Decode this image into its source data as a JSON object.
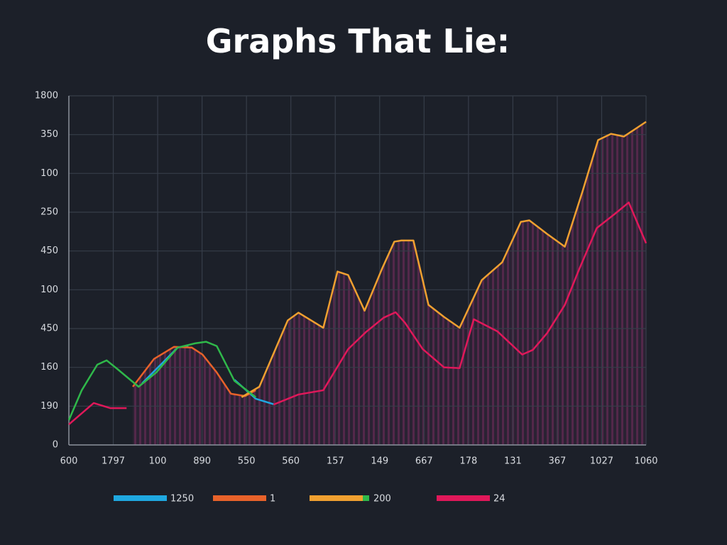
{
  "chart_data": {
    "type": "line",
    "title": "Graphs That Lie:",
    "xlim": [
      0,
      13
    ],
    "xticks": [
      {
        "value": 0,
        "label": "600"
      },
      {
        "value": 1,
        "label": "1797"
      },
      {
        "value": 2,
        "label": "100"
      },
      {
        "value": 3,
        "label": "890"
      },
      {
        "value": 4,
        "label": "550"
      },
      {
        "value": 5,
        "label": "560"
      },
      {
        "value": 6,
        "label": "157"
      },
      {
        "value": 7,
        "label": "149"
      },
      {
        "value": 8,
        "label": "667"
      },
      {
        "value": 9,
        "label": "178"
      },
      {
        "value": 10,
        "label": "131"
      },
      {
        "value": 11,
        "label": "367"
      },
      {
        "value": 12,
        "label": "1027"
      },
      {
        "value": 13,
        "label": "1060"
      }
    ],
    "ylim": [
      0,
      9
    ],
    "yticks": [
      {
        "value": 0,
        "label": "0"
      },
      {
        "value": 1,
        "label": "190"
      },
      {
        "value": 2,
        "label": "160"
      },
      {
        "value": 3,
        "label": "450"
      },
      {
        "value": 4,
        "label": "100"
      },
      {
        "value": 5,
        "label": "450"
      },
      {
        "value": 6,
        "label": "250"
      },
      {
        "value": 7,
        "label": "100"
      },
      {
        "value": 8,
        "label": "350"
      },
      {
        "value": 9,
        "label": "1800"
      }
    ],
    "grid": true,
    "legend": "bottom",
    "series": [
      {
        "name": "1250",
        "color": "#1fa8e0",
        "x": [
          1.65,
          2.13,
          2.45,
          2.69,
          3.2,
          3.73,
          4.21,
          4.61
        ],
        "values": [
          1.59,
          2.14,
          2.51,
          2.56,
          null,
          1.68,
          1.19,
          1.05
        ]
      },
      {
        "name": "1",
        "color": "#e8622a",
        "x": [
          1.44,
          1.92,
          2.37,
          2.77,
          3.01,
          3.33,
          3.65,
          3.97,
          4.21
        ],
        "values": [
          1.5,
          2.22,
          2.53,
          2.51,
          2.33,
          1.87,
          1.32,
          1.26,
          1.41
        ]
      },
      {
        "name": "200",
        "color": "#f0a030",
        "x": [
          3.89,
          4.29,
          4.93,
          5.17,
          5.73,
          6.05,
          6.29,
          6.66,
          7.06,
          7.33,
          7.49,
          7.76,
          8.1,
          8.45,
          8.8,
          9.3,
          9.76,
          10.18,
          10.37,
          10.77,
          11.17,
          11.57,
          11.92,
          12.21,
          12.5,
          13
        ],
        "values": [
          1.23,
          1.5,
          3.21,
          3.41,
          3.02,
          4.47,
          4.38,
          3.46,
          4.56,
          5.24,
          5.27,
          5.27,
          3.61,
          3.3,
          3.02,
          4.25,
          4.71,
          5.75,
          5.79,
          5.44,
          5.11,
          6.54,
          7.86,
          8.02,
          7.95,
          8.33
        ]
      },
      {
        "name": "24",
        "color": "#e0185a",
        "x": [
          0,
          0.56,
          0.93,
          1.3,
          2.5,
          4.61,
          5.17,
          5.73,
          6.29,
          6.69,
          7.09,
          7.36,
          7.57,
          7.97,
          8.45,
          8.8,
          9.12,
          9.65,
          10.21,
          10.45,
          10.77,
          11.17,
          11.49,
          11.89,
          12.29,
          12.61,
          13
        ],
        "values": [
          0.53,
          1.08,
          0.95,
          0.95,
          null,
          1.04,
          1.3,
          1.41,
          2.47,
          2.91,
          3.28,
          3.42,
          3.15,
          2.47,
          2.0,
          1.98,
          3.24,
          2.93,
          2.33,
          2.45,
          2.88,
          3.61,
          4.52,
          5.59,
          5.95,
          6.25,
          5.2
        ]
      },
      {
        "color": "#2fb84a",
        "x": [
          0,
          0.29,
          0.64,
          0.85,
          1.09,
          1.57,
          1.97,
          2.45,
          2.85,
          3.09,
          3.33,
          3.73,
          4.21
        ],
        "values": [
          0.64,
          1.41,
          2.07,
          2.18,
          1.96,
          1.5,
          1.87,
          2.51,
          2.62,
          2.66,
          2.55,
          1.65,
          1.23
        ]
      }
    ]
  }
}
